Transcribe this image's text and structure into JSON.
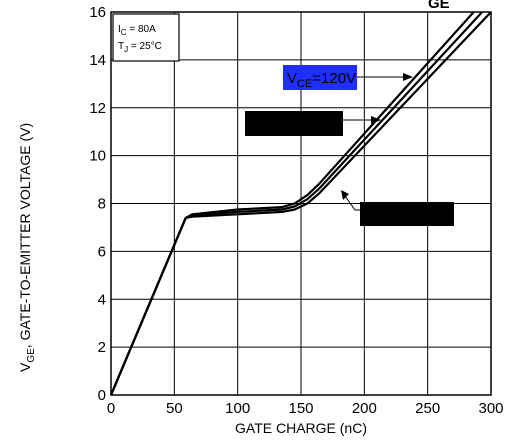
{
  "chart_data": {
    "type": "line",
    "title": "",
    "xlabel": "GATE CHARGE (nC)",
    "ylabel": "V",
    "ylabel_sub": "GE",
    "ylabel_rest": ", GATE-TO-EMITTER VOLTAGE (V)",
    "xlim": [
      0,
      300
    ],
    "ylim": [
      0,
      16
    ],
    "x_ticks": [
      0,
      50,
      100,
      150,
      200,
      250,
      300
    ],
    "y_ticks": [
      0,
      2,
      4,
      6,
      8,
      10,
      12,
      14,
      16
    ],
    "grid": true,
    "top_label_fragment": "GE",
    "conditions": [
      {
        "main": "I",
        "sub": "C",
        "rest": " = 80A"
      },
      {
        "main": "T",
        "sub": "J",
        "rest": " = 25°C"
      }
    ],
    "series": [
      {
        "name": "V_CE=120V",
        "label_main": "V",
        "label_sub": "CE",
        "label_rest": "=120V",
        "label_bg": "#1f2fff",
        "x": [
          0,
          59,
          64,
          100,
          135,
          145,
          155,
          164,
          300
        ],
        "y": [
          0,
          7.4,
          7.55,
          7.75,
          7.85,
          8.0,
          8.35,
          8.8,
          16.8
        ]
      },
      {
        "name": "",
        "x": [
          0,
          59,
          64,
          100,
          135,
          145,
          155,
          164,
          300
        ],
        "y": [
          0,
          7.4,
          7.5,
          7.65,
          7.75,
          7.88,
          8.18,
          8.6,
          16.4
        ]
      },
      {
        "name": "",
        "x": [
          0,
          59,
          64,
          100,
          135,
          145,
          155,
          164,
          300
        ],
        "y": [
          0,
          7.4,
          7.45,
          7.55,
          7.65,
          7.75,
          8.0,
          8.4,
          16.0
        ]
      }
    ],
    "redacted_labels": 2
  }
}
